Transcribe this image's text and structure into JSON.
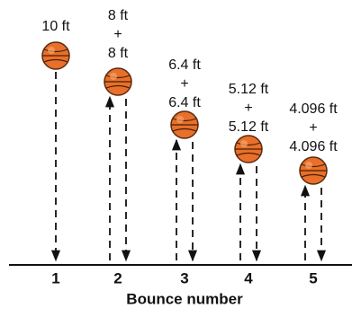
{
  "bounces": [
    {
      "number": "1",
      "labels": [
        "10 ft"
      ]
    },
    {
      "number": "2",
      "labels": [
        "8 ft",
        "+",
        "8 ft"
      ]
    },
    {
      "number": "3",
      "labels": [
        "6.4 ft",
        "+",
        "6.4 ft"
      ]
    },
    {
      "number": "4",
      "labels": [
        "5.12 ft",
        "+",
        "5.12 ft"
      ]
    },
    {
      "number": "5",
      "labels": [
        "4.096 ft",
        "+",
        "4.096 ft"
      ]
    }
  ],
  "axis_label": "Bounce number"
}
